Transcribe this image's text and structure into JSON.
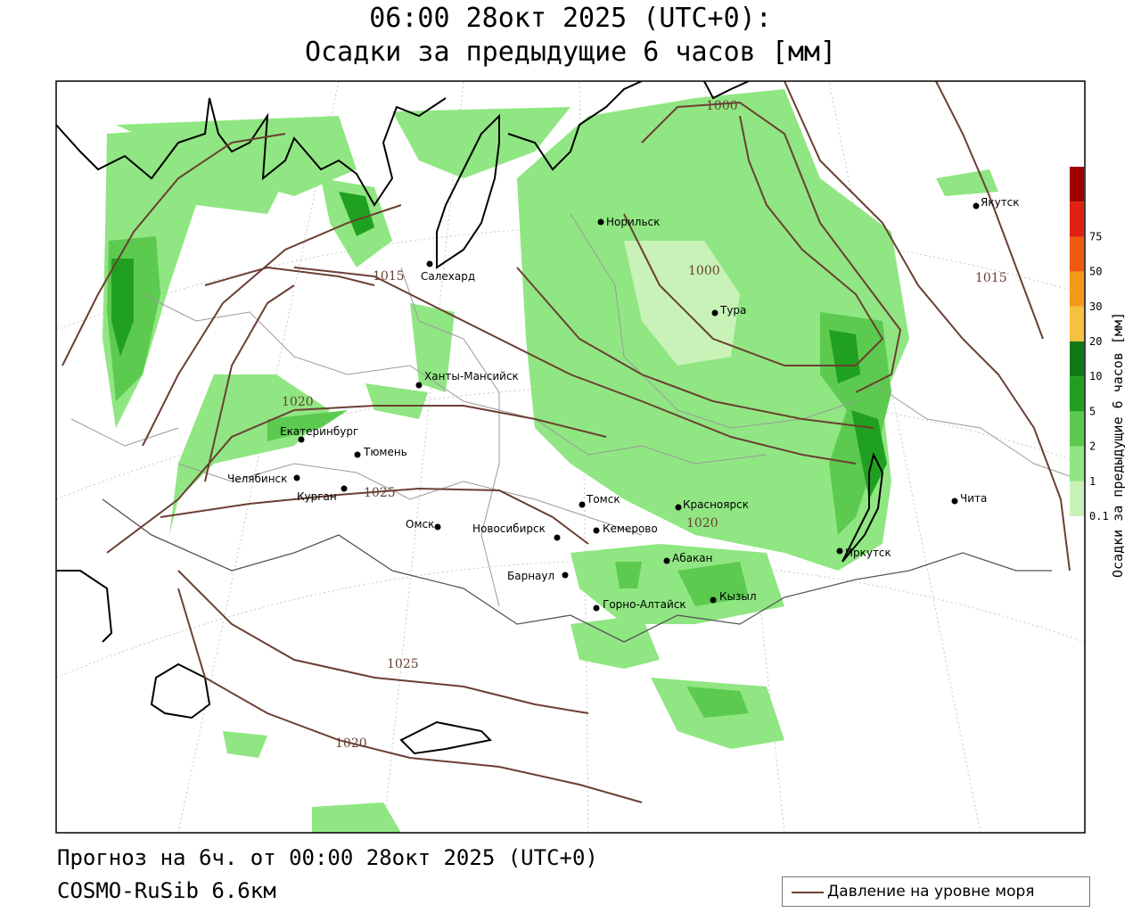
{
  "header": {
    "title_line1": "06:00 28окт 2025 (UTC+0):",
    "title_line2": "Осадки за предыдущие 6 часов [мм]"
  },
  "footer": {
    "forecast": "Прогноз на 6ч. от 00:00 28окт 2025 (UTC+0)",
    "model": "COSMO-RuSib 6.6км",
    "legend_label": "Давление на уровне моря"
  },
  "colorbar": {
    "label": "Осадки за предыдущие 6 часов [мм]",
    "levels": [
      "0.1",
      "1",
      "2",
      "5",
      "10",
      "20",
      "30",
      "50",
      "75"
    ],
    "colors": [
      "#c8f2b8",
      "#90e682",
      "#5cca4f",
      "#20a020",
      "#107818",
      "#f6c040",
      "#f29a18",
      "#ef5a10",
      "#e02010",
      "#a00000",
      "#b0b0b0"
    ]
  },
  "cities": [
    {
      "name": "Салехард"
    },
    {
      "name": "Норильск"
    },
    {
      "name": "Тура"
    },
    {
      "name": "Якутск"
    },
    {
      "name": "Ханты-Мансийск"
    },
    {
      "name": "Екатеринбург"
    },
    {
      "name": "Тюмень"
    },
    {
      "name": "Челябинск"
    },
    {
      "name": "Курган"
    },
    {
      "name": "Омск"
    },
    {
      "name": "Новосибирск"
    },
    {
      "name": "Томск"
    },
    {
      "name": "Кемерово"
    },
    {
      "name": "Красноярск"
    },
    {
      "name": "Абакан"
    },
    {
      "name": "Барнаул"
    },
    {
      "name": "Горно-Алтайск"
    },
    {
      "name": "Кызыл"
    },
    {
      "name": "Иркутск"
    },
    {
      "name": "Чита"
    }
  ],
  "isobar_labels": [
    "1000",
    "1015",
    "1000",
    "1015",
    "1020",
    "1025",
    "1020",
    "1025",
    "1020"
  ],
  "colors": {
    "isobar": "#6b3f33",
    "coast": "#000000"
  }
}
